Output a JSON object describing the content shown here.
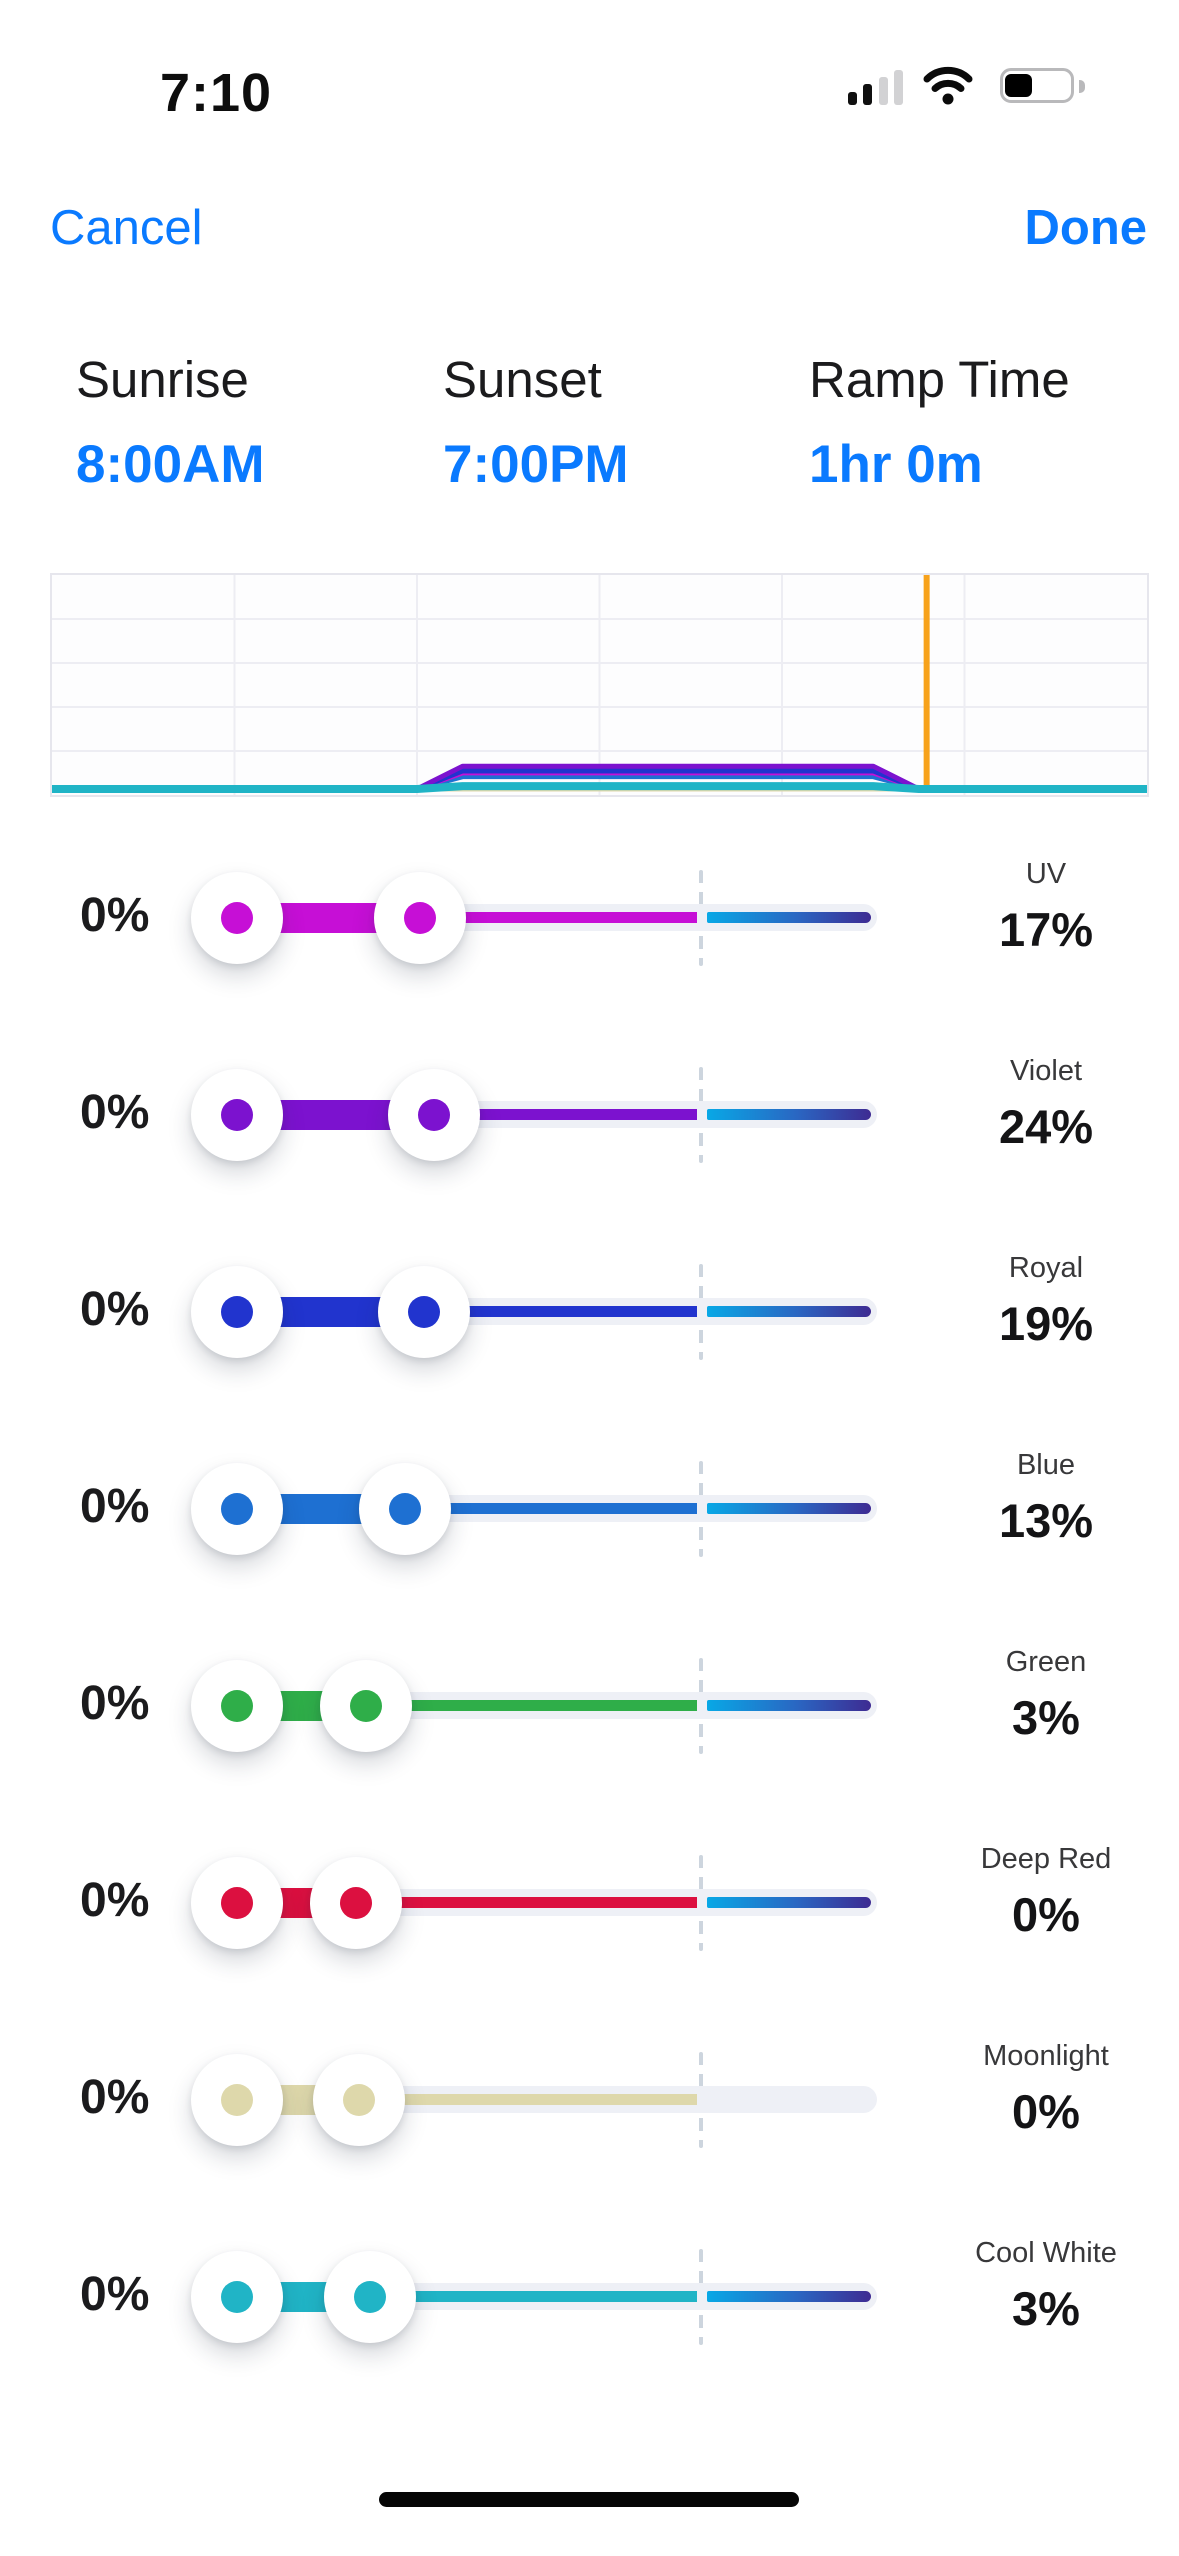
{
  "status_bar": {
    "time": "7:10",
    "signal_bars_total": 4,
    "signal_bars_filled": 2,
    "wifi_strength": "full",
    "battery_fill_pct": 40
  },
  "nav": {
    "cancel_label": "Cancel",
    "done_label": "Done",
    "accent_color": "#0A7AFF"
  },
  "schedule": {
    "items": [
      {
        "label": "Sunrise",
        "value": "8:00AM"
      },
      {
        "label": "Sunset",
        "value": "7:00PM"
      },
      {
        "label": "Ramp Time",
        "value": "1hr 0m"
      }
    ]
  },
  "chart_data": {
    "type": "area",
    "title": "",
    "xlabel": "",
    "ylabel": "",
    "x_axis": {
      "unit": "hours",
      "range": [
        0,
        24
      ],
      "grid_interval_hours": 4
    },
    "y_axis": {
      "range_pct": [
        0,
        100
      ],
      "grid_rows": 5
    },
    "grid": true,
    "legend": "none",
    "sunrise_hour": 8,
    "sunset_hour": 19,
    "ramp_hours": 1,
    "current_time_hour": 19.17,
    "current_time_line_color": "#F7A21B",
    "series": [
      {
        "name": "Deep Red",
        "peak_pct": 0,
        "color": "#DC1040"
      },
      {
        "name": "Moonlight",
        "peak_pct": 0,
        "color": "#DED8AB"
      },
      {
        "name": "Green",
        "peak_pct": 3,
        "color": "#2FAE49"
      },
      {
        "name": "Blue",
        "peak_pct": 13,
        "color": "#1E70D2"
      },
      {
        "name": "UV",
        "peak_pct": 17,
        "color": "#C60FD6"
      },
      {
        "name": "Royal",
        "peak_pct": 19,
        "color": "#2134CE"
      },
      {
        "name": "Violet",
        "peak_pct": 24,
        "color": "#7C12CF"
      },
      {
        "name": "Cool White",
        "peak_pct": 3,
        "color": "#20B4C6",
        "thick": true
      }
    ]
  },
  "sliders": {
    "track_color": "#EEF0F6",
    "dash_color": "#CDD5DE",
    "gradient_colors": [
      "#08A8E6",
      "#2A66C2",
      "#3E2B92"
    ],
    "channels": [
      {
        "name": "UV",
        "left_value": "0%",
        "value": "17%",
        "color": "#C60FD6",
        "right_handle_x": 420,
        "has_gradient": true
      },
      {
        "name": "Violet",
        "left_value": "0%",
        "value": "24%",
        "color": "#7C12CF",
        "right_handle_x": 434,
        "has_gradient": true
      },
      {
        "name": "Royal",
        "left_value": "0%",
        "value": "19%",
        "color": "#2134CE",
        "right_handle_x": 424,
        "has_gradient": true
      },
      {
        "name": "Blue",
        "left_value": "0%",
        "value": "13%",
        "color": "#1E70D2",
        "right_handle_x": 405,
        "has_gradient": true
      },
      {
        "name": "Green",
        "left_value": "0%",
        "value": "3%",
        "color": "#2FAE49",
        "right_handle_x": 366,
        "has_gradient": true
      },
      {
        "name": "Deep Red",
        "left_value": "0%",
        "value": "0%",
        "color": "#DC1040",
        "right_handle_x": 356,
        "has_gradient": true
      },
      {
        "name": "Moonlight",
        "left_value": "0%",
        "value": "0%",
        "color": "#DED8AB",
        "right_handle_x": 359,
        "has_gradient": false
      },
      {
        "name": "Cool White",
        "left_value": "0%",
        "value": "3%",
        "color": "#20B4C6",
        "right_handle_x": 370,
        "has_gradient": true
      }
    ]
  }
}
